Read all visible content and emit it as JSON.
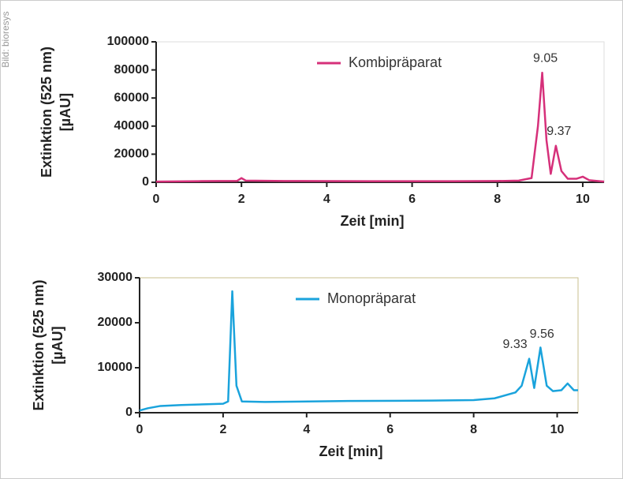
{
  "credit": "Bild: bioresys",
  "chart_data": [
    {
      "type": "line",
      "xlabel": "Zeit [min]",
      "ylabel": [
        "Extinktion (525 nm)",
        "[µAU]"
      ],
      "xlim": [
        0,
        10.5
      ],
      "xticks": [
        0,
        2,
        4,
        6,
        8,
        10
      ],
      "ylim": [
        0,
        100000
      ],
      "yticks": [
        0,
        20000,
        40000,
        60000,
        80000,
        100000
      ],
      "legend": "top-center",
      "x": [
        0,
        1,
        1.9,
        2,
        2.1,
        3,
        5,
        7,
        8,
        8.5,
        8.8,
        8.95,
        9.05,
        9.15,
        9.25,
        9.37,
        9.5,
        9.65,
        9.85,
        10.0,
        10.15,
        10.5
      ],
      "series": [
        {
          "name": "Kombipräparat",
          "color": "#d6307a",
          "values": [
            500,
            800,
            1000,
            3000,
            1200,
            900,
            800,
            800,
            900,
            1200,
            3000,
            40000,
            78000,
            30000,
            6000,
            26000,
            8000,
            2500,
            2500,
            4000,
            1500,
            500
          ]
        }
      ],
      "peak_labels": [
        9.05,
        9.37
      ]
    },
    {
      "type": "line",
      "xlabel": "Zeit [min]",
      "ylabel": [
        "Extinktion (525 nm)",
        "[µAU]"
      ],
      "xlim": [
        0,
        10.5
      ],
      "xticks": [
        0,
        2,
        4,
        6,
        8,
        10
      ],
      "ylim": [
        0,
        30000
      ],
      "yticks": [
        0,
        10000,
        20000,
        30000
      ],
      "legend": "top-center",
      "x": [
        0,
        0.2,
        0.5,
        1,
        2,
        2.12,
        2.22,
        2.32,
        2.45,
        3,
        5,
        7,
        8,
        8.5,
        9.0,
        9.15,
        9.33,
        9.45,
        9.6,
        9.75,
        9.9,
        10.1,
        10.25,
        10.4,
        10.5
      ],
      "series": [
        {
          "name": "Monopräparat",
          "color": "#1aa3dc",
          "values": [
            500,
            1000,
            1500,
            1700,
            2000,
            2500,
            27000,
            6000,
            2500,
            2400,
            2600,
            2700,
            2800,
            3200,
            4500,
            6000,
            12000,
            5500,
            14500,
            6000,
            4800,
            5000,
            6500,
            5000,
            5000
          ]
        }
      ],
      "peak_labels": [
        9.33,
        9.56
      ]
    }
  ]
}
